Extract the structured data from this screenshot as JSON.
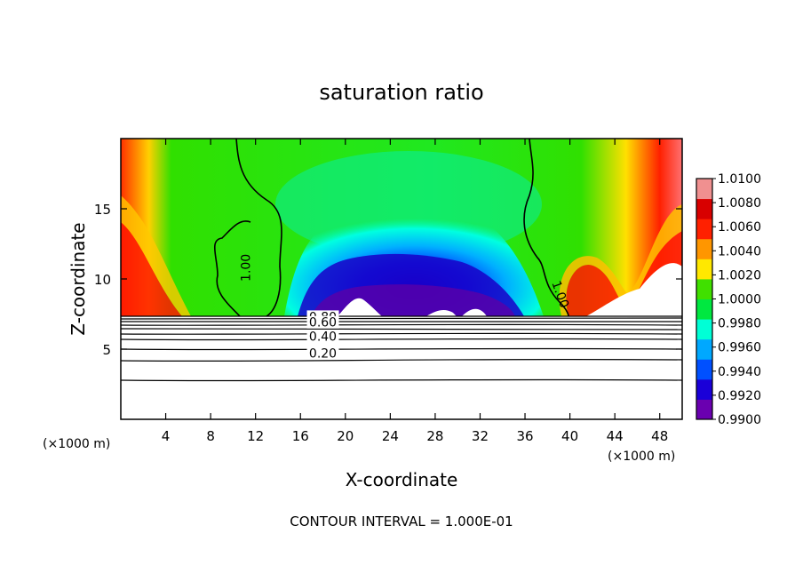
{
  "chart_data": {
    "type": "heatmap",
    "title": "saturation ratio",
    "xlabel": "X-coordinate",
    "ylabel": "Z-coordinate",
    "x_unit": "(×1000 m)",
    "z_unit": "(×1000 m)",
    "footer": "CONTOUR INTERVAL = 1.000E-01",
    "xlim": [
      0,
      50
    ],
    "ylim": [
      0,
      20
    ],
    "x_ticks": [
      4,
      8,
      12,
      16,
      20,
      24,
      28,
      32,
      36,
      40,
      44,
      48
    ],
    "x_tick_labels": [
      "4",
      "8",
      "12",
      "16",
      "20",
      "24",
      "28",
      "32",
      "36",
      "40",
      "44",
      "48"
    ],
    "y_ticks": [
      5,
      10,
      15
    ],
    "y_tick_labels": [
      "5",
      "10",
      "15"
    ],
    "colorbar": {
      "levels": [
        0.99,
        0.992,
        0.994,
        0.996,
        0.998,
        1.0,
        1.002,
        1.004,
        1.006,
        1.008,
        1.01
      ],
      "labels": [
        "0.9900",
        "0.9920",
        "0.9940",
        "0.9960",
        "0.9980",
        "1.0000",
        "1.0020",
        "1.0040",
        "1.0060",
        "1.0080",
        "1.0100"
      ],
      "colors": [
        "#6a00b0",
        "#1a00d8",
        "#0050ff",
        "#00a8ff",
        "#00ffd6",
        "#00e840",
        "#40e000",
        "#ffe800",
        "#ff9600",
        "#ff2000",
        "#d80000",
        "#f09090"
      ]
    },
    "contour_labels": [
      {
        "text": "1.00",
        "x": 11.5,
        "z": 10.8
      },
      {
        "text": "1.00",
        "x": 38.8,
        "z": 8.8
      },
      {
        "text": "0.80",
        "x": 18.0,
        "z": 7.0
      },
      {
        "text": "0.60",
        "x": 18.0,
        "z": 6.6
      },
      {
        "text": "0.40",
        "x": 18.0,
        "z": 5.6
      },
      {
        "text": "0.20",
        "x": 18.0,
        "z": 4.4
      }
    ]
  }
}
